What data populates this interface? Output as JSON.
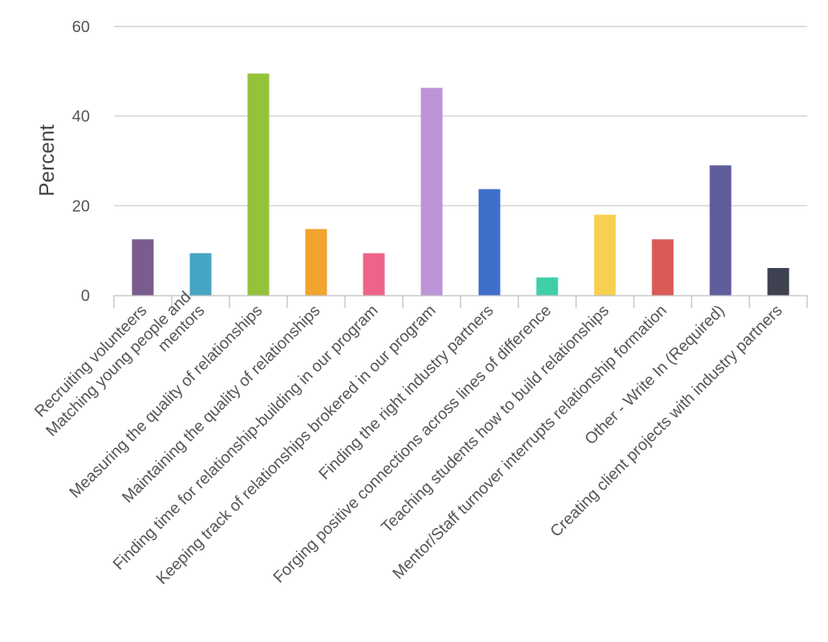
{
  "chart_data": {
    "type": "bar",
    "ylabel": "Percent",
    "ylim": [
      0,
      60
    ],
    "yticks": [
      0,
      20,
      40,
      60
    ],
    "grid": true,
    "categories": [
      "Recruiting volunteers",
      "Matching young people and mentors",
      "Measuring the quality of relationships",
      "Maintaining the quality of relationships",
      "Finding time for relationship-building in our program",
      "Keeping track of relationships brokered in our program",
      "Finding the right industry partners",
      "Forging positive connections across lines of difference",
      "Teaching students how to build relationships",
      "Mentor/Staff turnover interrupts relationship formation",
      "Other - Write In (Required)",
      "Creating client projects with industry partners"
    ],
    "category_lines": [
      [
        "Recruiting volunteers"
      ],
      [
        "Matching young people and",
        "mentors"
      ],
      [
        "Measuring the quality of relationships"
      ],
      [
        "Maintaining the quality of relationships"
      ],
      [
        "Finding time for relationship-building in our program"
      ],
      [
        "Keeping track of relationships brokered in our program"
      ],
      [
        "Finding the right industry partners"
      ],
      [
        "Forging positive connections across lines of difference"
      ],
      [
        "Teaching students how to build relationships"
      ],
      [
        "Mentor/Staff turnover interrupts relationship formation"
      ],
      [
        "Other - Write In (Required)"
      ],
      [
        "Creating client projects with industry partners"
      ]
    ],
    "values": [
      12.5,
      9.4,
      49.5,
      14.8,
      9.4,
      46.3,
      23.7,
      4.0,
      18.0,
      12.5,
      29.0,
      6.1
    ],
    "colors": [
      "#7b5c8f",
      "#45a5c2",
      "#94c33a",
      "#f1a42f",
      "#ee6489",
      "#bc94d7",
      "#3f6fcb",
      "#3ecfa8",
      "#f8d04f",
      "#d95b55",
      "#5f5e9b",
      "#3d4150"
    ]
  }
}
